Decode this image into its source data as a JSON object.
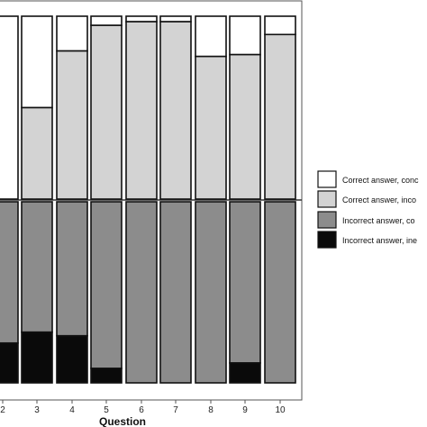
{
  "chart_data": {
    "type": "bar",
    "title": "",
    "xlabel": "Question",
    "ylabel": "",
    "categories": [
      "2",
      "3",
      "4",
      "5",
      "6",
      "7",
      "8",
      "9",
      "10"
    ],
    "top_panel": {
      "ylim": [
        0,
        100
      ],
      "series": [
        {
          "name": "Correct answer, conc",
          "color": "#ffffff",
          "values": [
            100,
            50,
            19,
            5,
            3,
            3,
            22,
            21,
            10
          ]
        },
        {
          "name": "Correct answer, inco",
          "color": "#d3d3d3",
          "values": [
            0,
            50,
            81,
            95,
            97,
            97,
            78,
            79,
            90
          ]
        }
      ]
    },
    "bottom_panel": {
      "ylim": [
        0,
        100
      ],
      "series": [
        {
          "name": "Incorrect answer, co",
          "color": "#8c8c8c",
          "values": [
            78,
            72,
            74,
            92,
            100,
            100,
            100,
            89,
            100
          ]
        },
        {
          "name": "Incorrect answer, ine",
          "color": "#0a0a0a",
          "values": [
            22,
            28,
            26,
            8,
            0,
            0,
            0,
            11,
            0
          ]
        }
      ]
    },
    "legend_position": "right",
    "grid": false
  }
}
